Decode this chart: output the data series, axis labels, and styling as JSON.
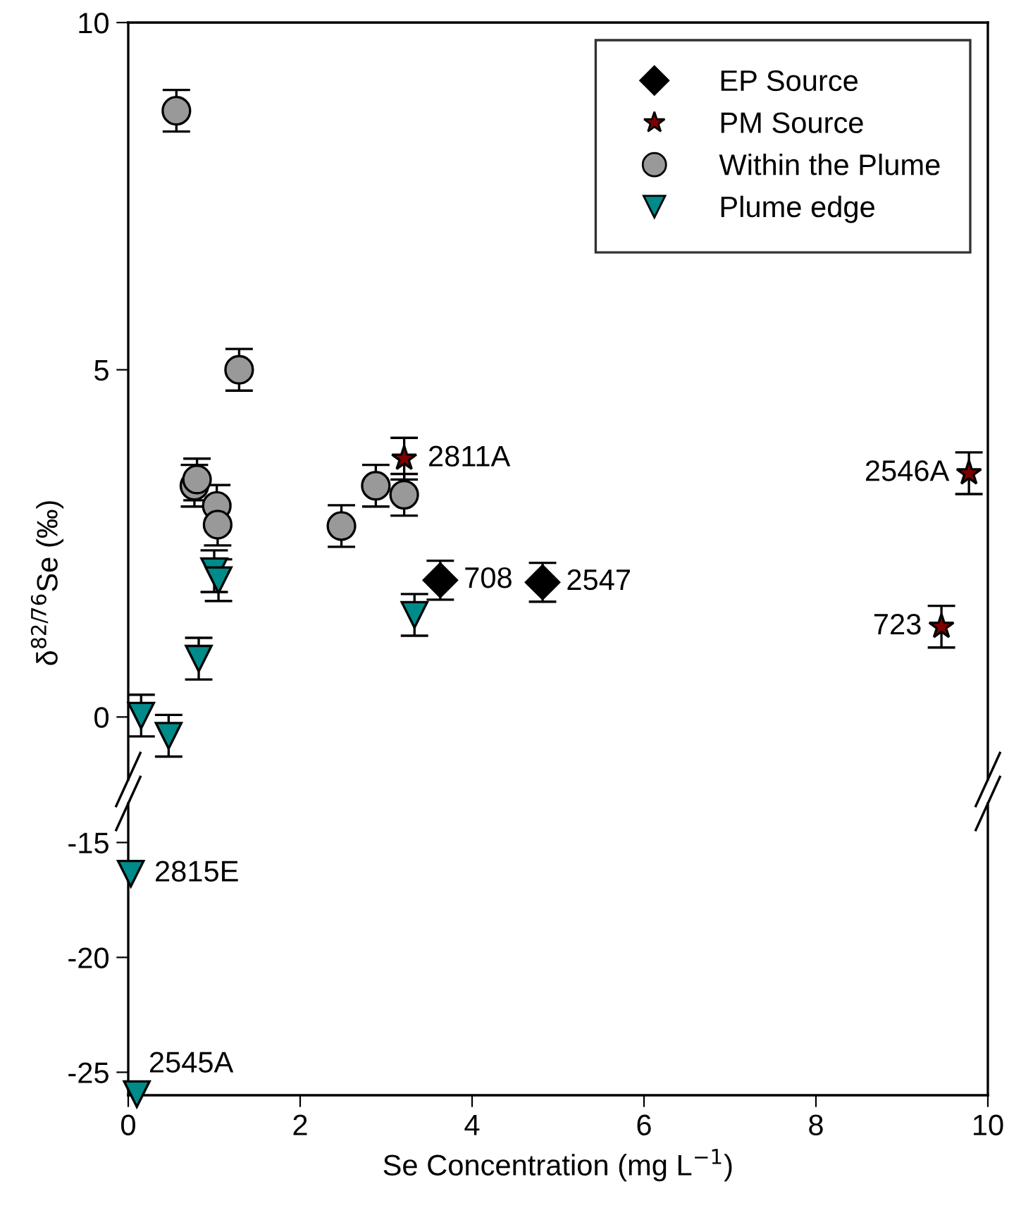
{
  "chart_data": [
    {
      "type": "scatter",
      "ylabel": "δ$^{82/76}$Se (‰)",
      "xlim": [
        0,
        10
      ],
      "xticks": [
        0,
        2,
        4,
        6,
        8,
        10
      ],
      "ylim": [
        -0.9,
        10
      ],
      "yticks": [
        0,
        5,
        10
      ],
      "tick_labels": "y",
      "legend": "top right",
      "series": [
        {
          "name": "EP Source",
          "color": "#000000",
          "marker": "diamond",
          "x": [
            3.63,
            4.82
          ],
          "values": [
            1.97,
            1.94
          ],
          "errors": [
            0.28,
            0.28
          ]
        },
        {
          "name": "PM Source",
          "color": "#800000",
          "marker": "star",
          "x": [
            3.21,
            9.78,
            9.46
          ],
          "values": [
            3.72,
            3.51,
            1.3
          ],
          "errors": [
            0.3,
            0.3,
            0.3
          ]
        },
        {
          "name": "Within the Plume",
          "color": "#999999",
          "marker": "circle",
          "x": [
            0.56,
            1.29,
            0.77,
            0.8,
            1.03,
            1.04,
            2.48,
            2.88,
            3.21
          ],
          "values": [
            8.73,
            5.0,
            3.33,
            3.42,
            3.04,
            2.77,
            2.75,
            3.33,
            3.2
          ],
          "errors": [
            0.3,
            0.3,
            0.3,
            0.3,
            0.3,
            0.3,
            0.3,
            0.3,
            0.3
          ]
        },
        {
          "name": "Plume edge",
          "color": "#008b8b",
          "marker": "triangle",
          "x": [
            1.0,
            1.05,
            0.82,
            3.33,
            0.15,
            0.47
          ],
          "values": [
            2.1,
            1.97,
            0.84,
            1.47,
            0.02,
            -0.27
          ],
          "errors": [
            0.3,
            0.3,
            0.3,
            0.3,
            0.3,
            0.3
          ]
        }
      ],
      "annotations": [
        {
          "text": "2811A",
          "x": 3.21,
          "y": 3.72
        },
        {
          "text": "708",
          "x": 3.63,
          "y": 1.97
        },
        {
          "text": "2547",
          "x": 4.82,
          "y": 1.94
        },
        {
          "text": "2546A",
          "x": 9.78,
          "y": 3.51
        },
        {
          "text": "723",
          "x": 9.46,
          "y": 1.3
        }
      ]
    },
    {
      "type": "scatter",
      "xlabel": "Se Concentration (mg L$^{−1}$)",
      "xlim": [
        0,
        10
      ],
      "xticks": [
        0,
        2,
        4,
        6,
        8,
        10
      ],
      "ylim": [
        -26,
        -13.3
      ],
      "yticks": [
        -15,
        -20,
        -25
      ],
      "series": [
        {
          "color": "#008b8b",
          "marker": "triangle",
          "x": [
            0.03,
            0.1
          ],
          "values": [
            -16.36,
            -25.95
          ],
          "errors": [
            null,
            null
          ]
        }
      ],
      "annotations": [
        {
          "text": "2815E",
          "x": 0.03,
          "y": -16.36
        },
        {
          "text": "2545A",
          "x": 0.1,
          "y": -25.95
        }
      ]
    }
  ]
}
